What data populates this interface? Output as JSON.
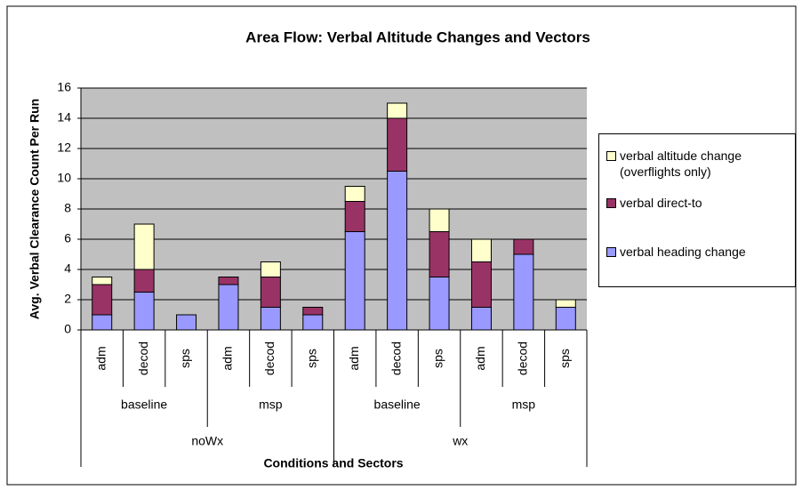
{
  "chart_data": {
    "type": "bar",
    "stacked": true,
    "title": "Area Flow: Verbal Altitude Changes and Vectors",
    "x_label": "Conditions and Sectors",
    "y_label": "Avg. Verbal Clearance Count Per Run",
    "category_groups": [
      {
        "name": "noWx",
        "groups": [
          {
            "name": "baseline",
            "categories": [
              "adm",
              "decod",
              "sps"
            ]
          },
          {
            "name": "msp",
            "categories": [
              "adm",
              "decod",
              "sps"
            ]
          }
        ]
      },
      {
        "name": "wx",
        "groups": [
          {
            "name": "baseline",
            "categories": [
              "adm",
              "decod",
              "sps"
            ]
          },
          {
            "name": "msp",
            "categories": [
              "adm",
              "decod",
              "sps"
            ]
          }
        ]
      }
    ],
    "series": [
      {
        "name": "verbal heading change",
        "color": "#9999ff",
        "values": [
          1,
          2.5,
          1,
          3,
          1.5,
          1,
          6.5,
          10.5,
          3.5,
          1.5,
          5,
          1.5
        ]
      },
      {
        "name": "verbal direct-to",
        "color": "#993366",
        "values": [
          2,
          1.5,
          0,
          0.5,
          2,
          0.5,
          2,
          3.5,
          3,
          3,
          1,
          0
        ]
      },
      {
        "name": "verbal altitude change (overflights only)",
        "color": "#ffffcc",
        "values": [
          0.5,
          3,
          0,
          0,
          1,
          0,
          1,
          1,
          1.5,
          1.5,
          0,
          0.5
        ]
      }
    ],
    "ylim": [
      0,
      16
    ],
    "yticks": [
      0,
      2,
      4,
      6,
      8,
      10,
      12,
      14,
      16
    ],
    "grid": true,
    "legend": "right"
  }
}
